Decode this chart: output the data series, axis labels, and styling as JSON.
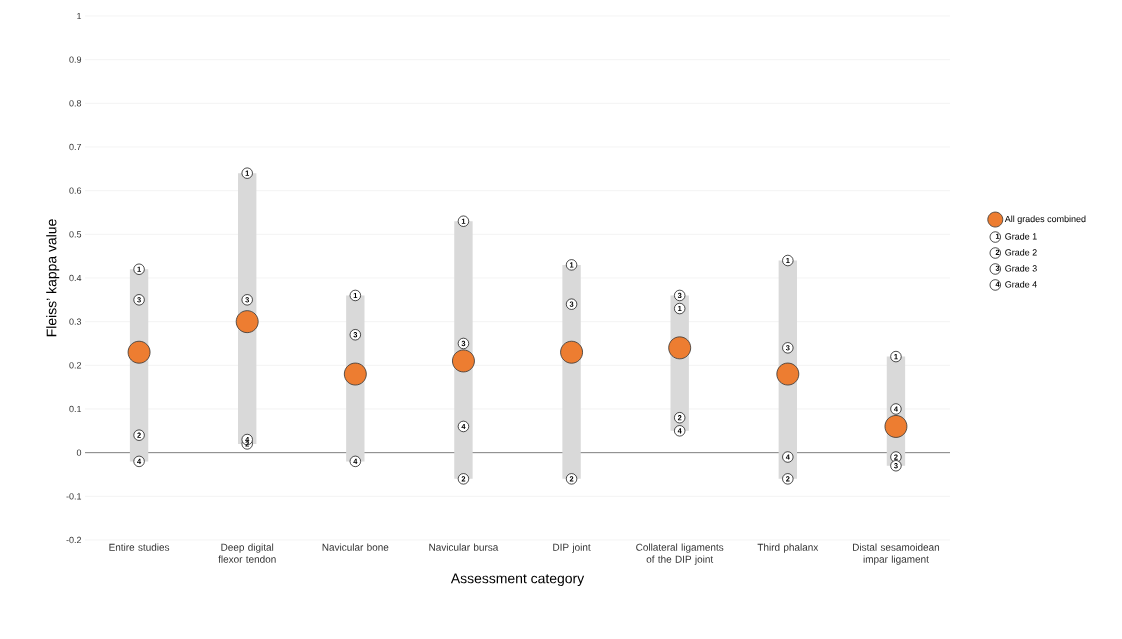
{
  "chart_data": {
    "type": "scatter",
    "xlabel": "Assessment category",
    "ylabel": "Fleiss’ kappa value",
    "categories": [
      "Entire studies",
      "Deep digital flexor tendon",
      "Navicular bone",
      "Navicular bursa",
      "DIP joint",
      "Collateral ligaments of the DIP joint",
      "Third phalanx",
      "Distal sesamoidean impar ligament"
    ],
    "series": [
      {
        "type": "bar",
        "color": "#d9d9d9",
        "base": [
          -0.02,
          0.02,
          -0.02,
          -0.06,
          -0.06,
          0.05,
          -0.06,
          -0.03
        ],
        "values": [
          0.44,
          0.62,
          0.38,
          0.59,
          0.49,
          0.31,
          0.5,
          0.25
        ]
      },
      {
        "name": "All grades combined",
        "color": "#ed7d31",
        "values": [
          0.23,
          0.3,
          0.18,
          0.21,
          0.23,
          0.24,
          0.18,
          0.06
        ]
      },
      {
        "name": "Grade 1",
        "color": "#ffffff",
        "values": [
          0.42,
          0.64,
          0.36,
          0.53,
          0.43,
          0.33,
          0.44,
          0.22
        ]
      },
      {
        "name": "Grade 2",
        "color": "#ffffff",
        "values": [
          0.04,
          0.02,
          null,
          -0.06,
          -0.06,
          0.08,
          -0.06,
          -0.01
        ]
      },
      {
        "name": "Grade 3",
        "color": "#ffffff",
        "values": [
          0.35,
          0.35,
          0.27,
          0.25,
          0.34,
          0.36,
          0.24,
          -0.03
        ]
      },
      {
        "name": "Grade 4",
        "color": "#ffffff",
        "values": [
          -0.02,
          0.03,
          -0.02,
          0.06,
          null,
          0.05,
          -0.01,
          0.1
        ]
      }
    ],
    "annotations": [
      "1",
      "2",
      "3",
      "4",
      {
        "text": "1",
        "x": "Entire studies",
        "y": 0.42
      },
      {
        "text": "1",
        "x": "Deep digital flexor tendon",
        "y": 0.64
      },
      {
        "text": "1",
        "x": "Navicular bone",
        "y": 0.36
      },
      {
        "text": "1",
        "x": "Navicular bursa",
        "y": 0.53
      },
      {
        "text": "1",
        "x": "DIP joint",
        "y": 0.43
      },
      {
        "text": "1",
        "x": "Collateral ligaments of the DIP joint",
        "y": 0.33
      },
      {
        "text": "1",
        "x": "Third phalanx",
        "y": 0.44
      },
      {
        "text": "1",
        "x": "Distal sesamoidean impar ligament",
        "y": 0.22
      },
      {
        "text": "2",
        "x": "Entire studies",
        "y": 0.04
      },
      {
        "text": "2",
        "x": "Deep digital flexor tendon",
        "y": 0.02
      },
      {
        "text": "2",
        "x": "Navicular bursa",
        "y": -0.06
      },
      {
        "text": "2",
        "x": "DIP joint",
        "y": -0.06
      },
      {
        "text": "2",
        "x": "Collateral ligaments of the DIP joint",
        "y": 0.08
      },
      {
        "text": "2",
        "x": "Third phalanx",
        "y": -0.06
      },
      {
        "text": "2",
        "x": "Distal sesamoidean impar ligament",
        "y": -0.01
      },
      {
        "text": "3",
        "x": "Entire studies",
        "y": 0.35
      },
      {
        "text": "3",
        "x": "Deep digital flexor tendon",
        "y": 0.35
      },
      {
        "text": "3",
        "x": "Navicular bone",
        "y": 0.27
      },
      {
        "text": "3",
        "x": "Navicular bursa",
        "y": 0.25
      },
      {
        "text": "3",
        "x": "DIP joint",
        "y": 0.34
      },
      {
        "text": "3",
        "x": "Collateral ligaments of the DIP joint",
        "y": 0.36
      },
      {
        "text": "3",
        "x": "Third phalanx",
        "y": 0.24
      },
      {
        "text": "3",
        "x": "Distal sesamoidean impar ligament",
        "y": -0.03
      },
      {
        "text": "4",
        "x": "Entire studies",
        "y": -0.02
      },
      {
        "text": "4",
        "x": "Deep digital flexor tendon",
        "y": 0.03
      },
      {
        "text": "4",
        "x": "Navicular bone",
        "y": -0.02
      },
      {
        "text": "4",
        "x": "Navicular bursa",
        "y": 0.06
      },
      {
        "text": "4",
        "x": "Collateral ligaments of the DIP joint",
        "y": 0.05
      },
      {
        "text": "4",
        "x": "Third phalanx",
        "y": -0.01
      },
      {
        "text": "4",
        "x": "Distal sesamoidean impar ligament",
        "y": 0.1
      }
    ],
    "ylim": [
      -0.2,
      1
    ],
    "yticks": [
      -0.2,
      -0.1,
      0,
      0.1,
      0.2,
      0.3,
      0.4,
      0.5,
      0.6,
      0.7,
      0.8,
      0.9,
      1
    ],
    "grid": "y",
    "legend": "right",
    "marker": "circle"
  }
}
